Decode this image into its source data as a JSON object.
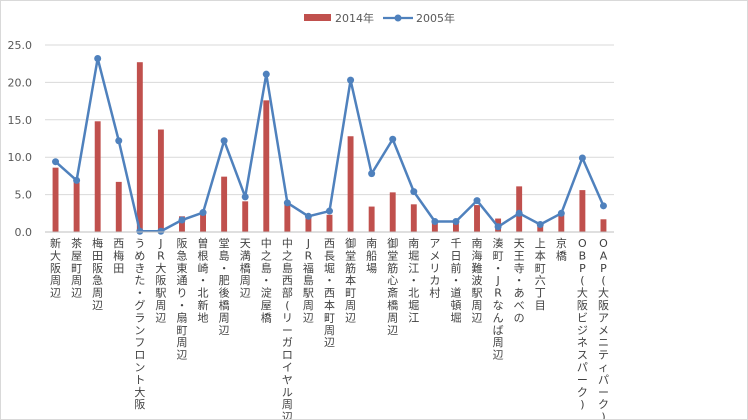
{
  "chart_data": {
    "type": "bar",
    "title": "",
    "xlabel": "",
    "ylabel": "",
    "ylim": [
      0,
      25
    ],
    "yticks": [
      "0.0",
      "5.0",
      "10.0",
      "15.0",
      "20.0",
      "25.0"
    ],
    "grid": true,
    "legend": "top-center",
    "colors": {
      "bar": "#c0504d",
      "line": "#4f81bd",
      "grid": "#d9d9d9",
      "axis": "#bfbfbf"
    },
    "categories": [
      "新大阪周辺",
      "茶屋町周辺",
      "梅田阪急周辺",
      "西梅田",
      "うめきた・グランフロント大阪",
      "JR大阪駅周辺",
      "阪急東通り・扇町周辺",
      "曽根崎・北新地",
      "堂島・肥後橋周辺",
      "天満橋周辺",
      "中之島・淀屋橋",
      "中之島西部(リーガロイヤル周辺)",
      "JR福島駅周辺",
      "西長堀・西本町周辺",
      "御堂筋本町周辺",
      "南船場",
      "御堂筋心斎橋周辺",
      "南堀江・北堀江",
      "アメリカ村",
      "千日前・道頓堀",
      "南海難波駅周辺",
      "湊町・JRなんば周辺",
      "天王寺・あべの",
      "上本町六丁目",
      "京橋",
      "OBP(大阪ビジネスパーク)",
      "OAP(大阪アメニティパーク)"
    ],
    "series": [
      {
        "name": "2014年",
        "kind": "bar",
        "values": [
          8.6,
          7.0,
          14.8,
          6.7,
          22.7,
          13.7,
          2.1,
          2.7,
          7.4,
          4.1,
          17.6,
          3.9,
          2.2,
          2.3,
          12.8,
          3.4,
          5.3,
          3.7,
          1.2,
          1.2,
          3.6,
          1.8,
          6.1,
          1.3,
          2.6,
          5.6,
          1.7
        ]
      },
      {
        "name": "2005年",
        "kind": "line",
        "values": [
          9.4,
          6.9,
          23.2,
          12.2,
          0.1,
          0.1,
          1.6,
          2.6,
          12.2,
          4.7,
          21.1,
          3.9,
          2.1,
          2.8,
          20.3,
          7.8,
          12.4,
          5.4,
          1.4,
          1.4,
          4.2,
          0.7,
          2.5,
          1.0,
          2.5,
          9.9,
          3.5
        ]
      }
    ]
  }
}
